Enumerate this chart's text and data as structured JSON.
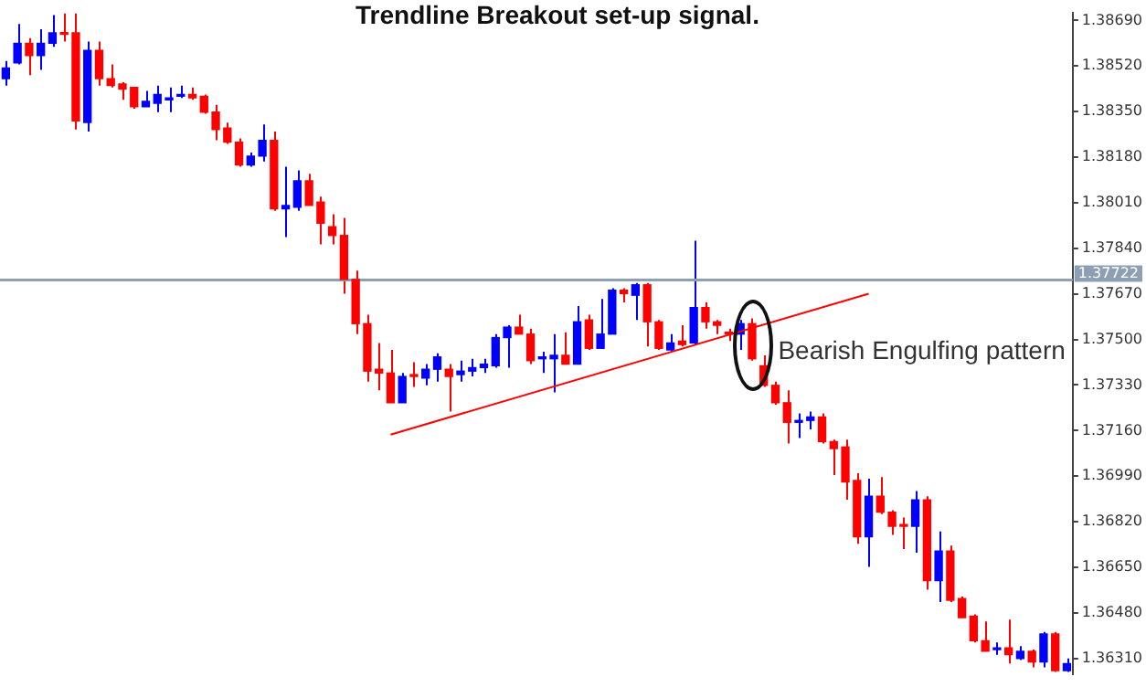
{
  "chart_data": {
    "type": "candlestick",
    "title": "Trendline Breakout set-up signal.",
    "categories": [
      null,
      null,
      null,
      null,
      null,
      null,
      null,
      null,
      null,
      null,
      null,
      null,
      null,
      null,
      null,
      null,
      null,
      null,
      null,
      null,
      null,
      null,
      null,
      null,
      null,
      null,
      null,
      null,
      null,
      null,
      null,
      null,
      null,
      null,
      null,
      null,
      null,
      null,
      null,
      null,
      null,
      null,
      null,
      null,
      null,
      null,
      null,
      null,
      null,
      null,
      null,
      null,
      null,
      null,
      null,
      null,
      null,
      null,
      null,
      null,
      null,
      null,
      null,
      null,
      null,
      null,
      null,
      null,
      null,
      null,
      null,
      null,
      null,
      null,
      null,
      null,
      null,
      null,
      null,
      null,
      null,
      null,
      null,
      null,
      null,
      null,
      null,
      null,
      null,
      null,
      null,
      null
    ],
    "ohlc": [
      [
        1.38473,
        1.38539,
        1.38447,
        1.38513
      ],
      [
        1.38532,
        1.38677,
        1.38526,
        1.38605
      ],
      [
        1.38605,
        1.38624,
        1.38486,
        1.38559
      ],
      [
        1.38559,
        1.38657,
        1.38506,
        1.38605
      ],
      [
        1.38605,
        1.3871,
        1.38592,
        1.38644
      ],
      [
        1.38644,
        1.38716,
        1.38611,
        1.38638
      ],
      [
        1.38644,
        1.38716,
        1.38283,
        1.38315
      ],
      [
        1.38309,
        1.38611,
        1.38276,
        1.38578
      ],
      [
        1.38578,
        1.38611,
        1.38447,
        1.38473
      ],
      [
        1.38473,
        1.38526,
        1.3844,
        1.38447
      ],
      [
        1.38453,
        1.3846,
        1.38394,
        1.38434
      ],
      [
        1.3844,
        1.3844,
        1.38361,
        1.38368
      ],
      [
        1.38368,
        1.38427,
        1.38368,
        1.38388
      ],
      [
        1.38381,
        1.38447,
        1.38348,
        1.38414
      ],
      [
        1.38394,
        1.3844,
        1.38348,
        1.38401
      ],
      [
        1.38407,
        1.38447,
        1.38401,
        1.38414
      ],
      [
        1.38414,
        1.3844,
        1.38394,
        1.38401
      ],
      [
        1.38407,
        1.38414,
        1.38342,
        1.38348
      ],
      [
        1.38348,
        1.38375,
        1.38243,
        1.38283
      ],
      [
        1.38289,
        1.38309,
        1.3823,
        1.38236
      ],
      [
        1.38236,
        1.3825,
        1.38144,
        1.38151
      ],
      [
        1.38151,
        1.38197,
        1.38144,
        1.38184
      ],
      [
        1.38184,
        1.38302,
        1.38164,
        1.38243
      ],
      [
        1.38243,
        1.38276,
        1.3798,
        1.37987
      ],
      [
        1.37987,
        1.38144,
        1.37882,
        1.38
      ],
      [
        1.37993,
        1.38131,
        1.3798,
        1.38092
      ],
      [
        1.38092,
        1.38118,
        1.38,
        1.38
      ],
      [
        1.38013,
        1.38033,
        1.37855,
        1.37934
      ],
      [
        1.37921,
        1.37967,
        1.37855,
        1.37888
      ],
      [
        1.37888,
        1.37954,
        1.37671,
        1.37724
      ],
      [
        1.37724,
        1.37757,
        1.3752,
        1.37559
      ],
      [
        1.37559,
        1.37592,
        1.37343,
        1.37382
      ],
      [
        1.37389,
        1.37487,
        1.3731,
        1.37375
      ],
      [
        1.37375,
        1.37461,
        1.37264,
        1.37264
      ],
      [
        1.37264,
        1.37375,
        1.37264,
        1.37362
      ],
      [
        1.37369,
        1.37415,
        1.37323,
        1.37362
      ],
      [
        1.37356,
        1.37408,
        1.37329,
        1.37389
      ],
      [
        1.37389,
        1.37448,
        1.37343,
        1.37435
      ],
      [
        1.37389,
        1.37408,
        1.37231,
        1.37362
      ],
      [
        1.37369,
        1.37421,
        1.37343,
        1.37382
      ],
      [
        1.37382,
        1.37428,
        1.37362,
        1.37395
      ],
      [
        1.37395,
        1.37428,
        1.37375,
        1.37408
      ],
      [
        1.37402,
        1.3752,
        1.37395,
        1.37507
      ],
      [
        1.37507,
        1.37553,
        1.37395,
        1.37546
      ],
      [
        1.37546,
        1.37592,
        1.3752,
        1.3752
      ],
      [
        1.3752,
        1.3754,
        1.37408,
        1.37421
      ],
      [
        1.37428,
        1.37454,
        1.37375,
        1.37435
      ],
      [
        1.37428,
        1.3752,
        1.37303,
        1.37441
      ],
      [
        1.37441,
        1.37527,
        1.37408,
        1.37408
      ],
      [
        1.37408,
        1.37625,
        1.37408,
        1.37566
      ],
      [
        1.37573,
        1.37592,
        1.37461,
        1.37467
      ],
      [
        1.37467,
        1.37651,
        1.37467,
        1.3752
      ],
      [
        1.3752,
        1.37691,
        1.3752,
        1.37684
      ],
      [
        1.37684,
        1.37691,
        1.37638,
        1.37671
      ],
      [
        1.37665,
        1.37711,
        1.37573,
        1.37704
      ],
      [
        1.37704,
        1.37711,
        1.37474,
        1.37566
      ],
      [
        1.37566,
        1.37573,
        1.37461,
        1.37467
      ],
      [
        1.37461,
        1.3752,
        1.37454,
        1.37487
      ],
      [
        1.37494,
        1.37553,
        1.37474,
        1.37481
      ],
      [
        1.37487,
        1.37868,
        1.37481,
        1.37619
      ],
      [
        1.37619,
        1.37638,
        1.3754,
        1.37566
      ],
      [
        1.37566,
        1.37573,
        1.3752,
        1.37553
      ],
      [
        1.37527,
        1.3754,
        1.37494,
        1.3752
      ],
      [
        1.3752,
        1.37573,
        1.37461,
        1.37559
      ],
      [
        1.37559,
        1.37579,
        1.37421,
        1.37428
      ],
      [
        1.37402,
        1.37441,
        1.37323,
        1.37329
      ],
      [
        1.37329,
        1.37343,
        1.37257,
        1.37264
      ],
      [
        1.37264,
        1.3731,
        1.37112,
        1.37191
      ],
      [
        1.37191,
        1.37224,
        1.37132,
        1.37198
      ],
      [
        1.37198,
        1.37231,
        1.37165,
        1.37211
      ],
      [
        1.37211,
        1.37224,
        1.37112,
        1.37119
      ],
      [
        1.37119,
        1.37126,
        1.36994,
        1.37093
      ],
      [
        1.37099,
        1.37126,
        1.36902,
        1.36968
      ],
      [
        1.36974,
        1.37001,
        1.36738,
        1.36764
      ],
      [
        1.36764,
        1.36981,
        1.36652,
        1.36915
      ],
      [
        1.36915,
        1.36987,
        1.36849,
        1.36856
      ],
      [
        1.36856,
        1.36863,
        1.36771,
        1.36803
      ],
      [
        1.3681,
        1.36836,
        1.36718,
        1.36803
      ],
      [
        1.36803,
        1.36935,
        1.36705,
        1.36902
      ],
      [
        1.36902,
        1.36915,
        1.36567,
        1.366
      ],
      [
        1.366,
        1.36784,
        1.36521,
        1.36711
      ],
      [
        1.36711,
        1.36731,
        1.36521,
        1.36527
      ],
      [
        1.36534,
        1.36541,
        1.36462,
        1.36462
      ],
      [
        1.36468,
        1.36475,
        1.3637,
        1.36376
      ],
      [
        1.36376,
        1.36448,
        1.36337,
        1.36337
      ],
      [
        1.36343,
        1.3637,
        1.36324,
        1.3635
      ],
      [
        1.3635,
        1.36455,
        1.36291,
        1.36324
      ],
      [
        1.3631,
        1.36356,
        1.36304,
        1.36337
      ],
      [
        1.36337,
        1.36343,
        1.36277,
        1.36297
      ],
      [
        1.36297,
        1.36409,
        1.36277,
        1.36402
      ],
      [
        1.36402,
        1.36409,
        1.3626,
        1.36265
      ],
      [
        1.36265,
        1.3631,
        1.3626,
        1.36291
      ]
    ],
    "colors": [
      "#0000ff",
      "#0000ff",
      "#ff0000",
      "#0000ff",
      "#0000ff",
      "#ff0000",
      "#ff0000",
      "#0000ff",
      "#ff0000",
      "#ff0000",
      "#ff0000",
      "#ff0000",
      "#0000ff",
      "#0000ff",
      "#0000ff",
      "#0000ff",
      "#ff0000",
      "#ff0000",
      "#ff0000",
      "#ff0000",
      "#ff0000",
      "#0000ff",
      "#0000ff",
      "#ff0000",
      "#0000ff",
      "#0000ff",
      "#ff0000",
      "#ff0000",
      "#ff0000",
      "#ff0000",
      "#ff0000",
      "#ff0000",
      "#ff0000",
      "#ff0000",
      "#0000ff",
      "#ff0000",
      "#0000ff",
      "#0000ff",
      "#ff0000",
      "#0000ff",
      "#0000ff",
      "#0000ff",
      "#0000ff",
      "#0000ff",
      "#ff0000",
      "#ff0000",
      "#0000ff",
      "#0000ff",
      "#ff0000",
      "#0000ff",
      "#ff0000",
      "#0000ff",
      "#0000ff",
      "#ff0000",
      "#0000ff",
      "#ff0000",
      "#ff0000",
      "#0000ff",
      "#ff0000",
      "#0000ff",
      "#ff0000",
      "#ff0000",
      "#ff0000",
      "#0000ff",
      "#ff0000",
      "#ff0000",
      "#ff0000",
      "#ff0000",
      "#0000ff",
      "#0000ff",
      "#ff0000",
      "#ff0000",
      "#ff0000",
      "#ff0000",
      "#0000ff",
      "#ff0000",
      "#ff0000",
      "#ff0000",
      "#0000ff",
      "#ff0000",
      "#0000ff",
      "#ff0000",
      "#ff0000",
      "#ff0000",
      "#ff0000",
      "#0000ff",
      "#ff0000",
      "#0000ff",
      "#ff0000",
      "#0000ff",
      "#ff0000",
      "#0000ff"
    ],
    "series": [
      {
        "type": "line",
        "values": [
          null,
          null,
          null,
          null,
          null,
          null,
          null,
          null,
          null,
          null,
          null,
          null,
          null,
          null,
          null,
          null,
          null,
          null,
          null,
          null,
          null,
          null,
          null,
          null,
          null,
          null,
          null,
          null,
          null,
          null,
          null,
          null,
          null,
          1.37145,
          null,
          null,
          null,
          null,
          null,
          null,
          null,
          null,
          null,
          null,
          null,
          null,
          null,
          null,
          null,
          null,
          null,
          null,
          null,
          null,
          null,
          null,
          null,
          null,
          null,
          null,
          null,
          null,
          null,
          null,
          null,
          null,
          null,
          null,
          null,
          null,
          null,
          null,
          null,
          null,
          1.37671,
          null,
          null,
          null,
          null,
          null,
          null,
          null,
          null,
          null,
          null,
          null,
          null,
          null,
          null,
          null,
          null,
          null
        ],
        "color": "#ff0000"
      }
    ],
    "ylim": [
      1.3625,
      1.3872
    ],
    "yticks": [
      {
        "value": 1.3631,
        "label": "1.36310"
      },
      {
        "value": 1.3648,
        "label": "1.36480"
      },
      {
        "value": 1.3665,
        "label": "1.36650"
      },
      {
        "value": 1.3682,
        "label": "1.36820"
      },
      {
        "value": 1.3699,
        "label": "1.36990"
      },
      {
        "value": 1.3716,
        "label": "1.37160"
      },
      {
        "value": 1.3733,
        "label": "1.37330"
      },
      {
        "value": 1.375,
        "label": "1.37500"
      },
      {
        "value": 1.3767,
        "label": "1.37670"
      },
      {
        "value": 1.3784,
        "label": "1.37840"
      },
      {
        "value": 1.3801,
        "label": "1.38010"
      },
      {
        "value": 1.3818,
        "label": "1.38180"
      },
      {
        "value": 1.3835,
        "label": "1.38350"
      },
      {
        "value": 1.3852,
        "label": "1.38520"
      },
      {
        "value": 1.3869,
        "label": "1.38690"
      }
    ],
    "tick_labels": "y",
    "ref_lines": [
      {
        "axis": "y",
        "value": 1.37722,
        "label": "1.37722",
        "color": "#8d9fb2"
      }
    ],
    "annotations": [
      "Bearish Engulfing pattern"
    ]
  }
}
